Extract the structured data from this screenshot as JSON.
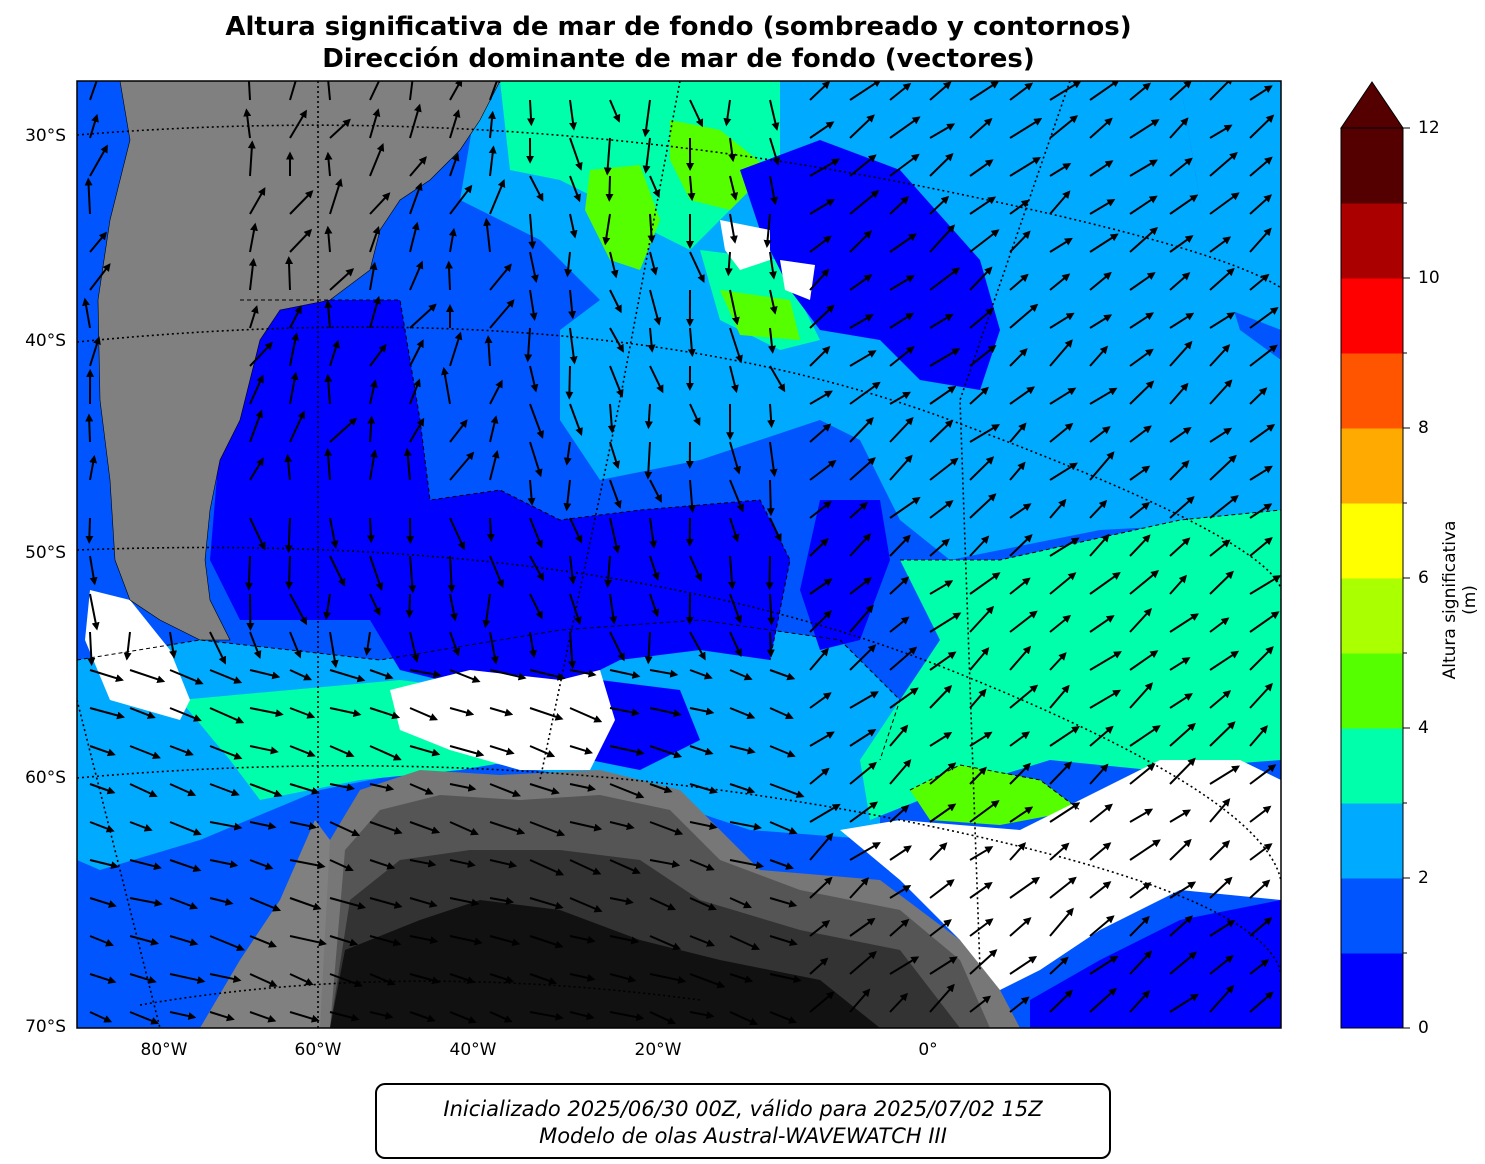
{
  "title": {
    "line1": "Altura significativa de mar de fondo (sombreado y contornos)",
    "line2": "Dirección dominante de mar de fondo (vectores)"
  },
  "map": {
    "lat_labels": [
      "30°S",
      "40°S",
      "50°S",
      "60°S",
      "70°S"
    ],
    "lon_labels": [
      "80°W",
      "60°W",
      "40°W",
      "20°W",
      "0°"
    ]
  },
  "colorbar": {
    "label": "Altura significativa (m)",
    "ticks": [
      "0",
      "2",
      "4",
      "6",
      "8",
      "10",
      "12"
    ],
    "levels": [
      0,
      1,
      2,
      3,
      4,
      5,
      6,
      7,
      8,
      9,
      10,
      11,
      12
    ],
    "colors": [
      "#0000ff",
      "#0055ff",
      "#00aaff",
      "#00ffaa",
      "#55ff00",
      "#aaff00",
      "#ffff00",
      "#ffaa00",
      "#ff5500",
      "#ff0000",
      "#aa0000",
      "#550000"
    ],
    "extend_color": "#550000"
  },
  "colors": {
    "land": "#808080",
    "antarctica_dark": "#111111",
    "no_data": "#ffffff"
  },
  "footer": {
    "line1": "Inicializado 2025/06/30 00Z, válido para 2025/07/02 15Z",
    "line2": "Modelo de olas Austral-WAVEWATCH III"
  }
}
